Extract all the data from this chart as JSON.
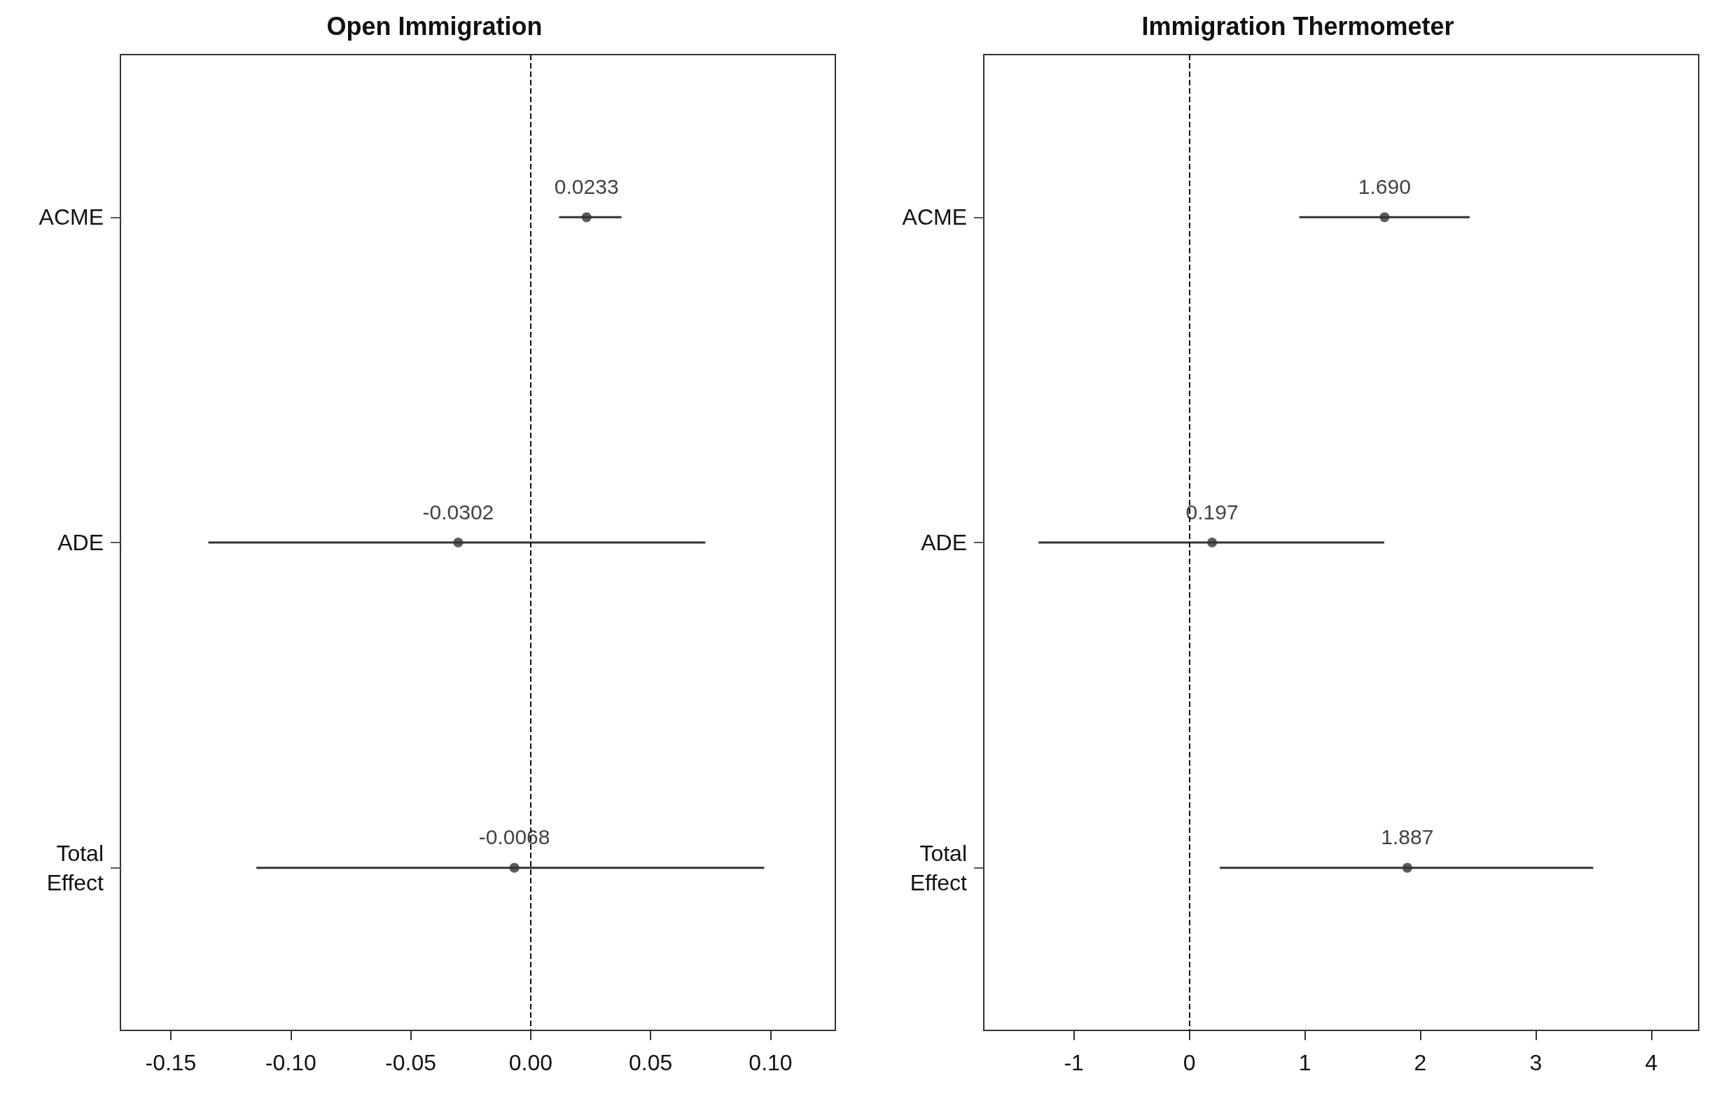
{
  "chart_data": [
    {
      "type": "scatter",
      "title": "Open Immigration",
      "orientation": "horizontal",
      "categories": [
        "ACME",
        "ADE",
        "Total\nEffect"
      ],
      "values": [
        0.0233,
        -0.0302,
        -0.0068
      ],
      "errors": [
        [
          0.0122,
          0.0375
        ],
        [
          -0.134,
          0.0725
        ],
        [
          -0.114,
          0.097
        ]
      ],
      "color": "#333333",
      "marker": "circle",
      "data_labels": true,
      "grid": false,
      "xlim": [
        -0.171,
        0.127
      ],
      "xticks": [
        {
          "value": -0.15,
          "label": "-0.15"
        },
        {
          "value": -0.1,
          "label": "-0.10"
        },
        {
          "value": -0.05,
          "label": "-0.05"
        },
        {
          "value": 0,
          "label": "0.00"
        },
        {
          "value": 0.05,
          "label": "0.05"
        },
        {
          "value": 0.1,
          "label": "0.10"
        }
      ],
      "ref_lines": [
        {
          "axis": "x",
          "value": 0,
          "line_style": "dashed"
        }
      ]
    },
    {
      "type": "scatter",
      "title": "Immigration Thermometer",
      "orientation": "horizontal",
      "categories": [
        "ACME",
        "ADE",
        "Total\nEffect"
      ],
      "values": [
        1.69,
        0.197,
        1.887
      ],
      "value_labels": [
        "1.690",
        "0.197",
        "1.887"
      ],
      "errors": [
        [
          0.96,
          2.42
        ],
        [
          -1.3,
          1.68
        ],
        [
          0.27,
          3.49
        ]
      ],
      "color": "#333333",
      "marker": "circle",
      "grid": false,
      "xlim": [
        -1.78,
        4.41
      ],
      "xticks": [
        -1,
        0,
        1,
        2,
        3,
        4
      ],
      "ref_lines": [
        {
          "axis": "x",
          "value": 0,
          "line_style": "dashed"
        }
      ]
    }
  ]
}
